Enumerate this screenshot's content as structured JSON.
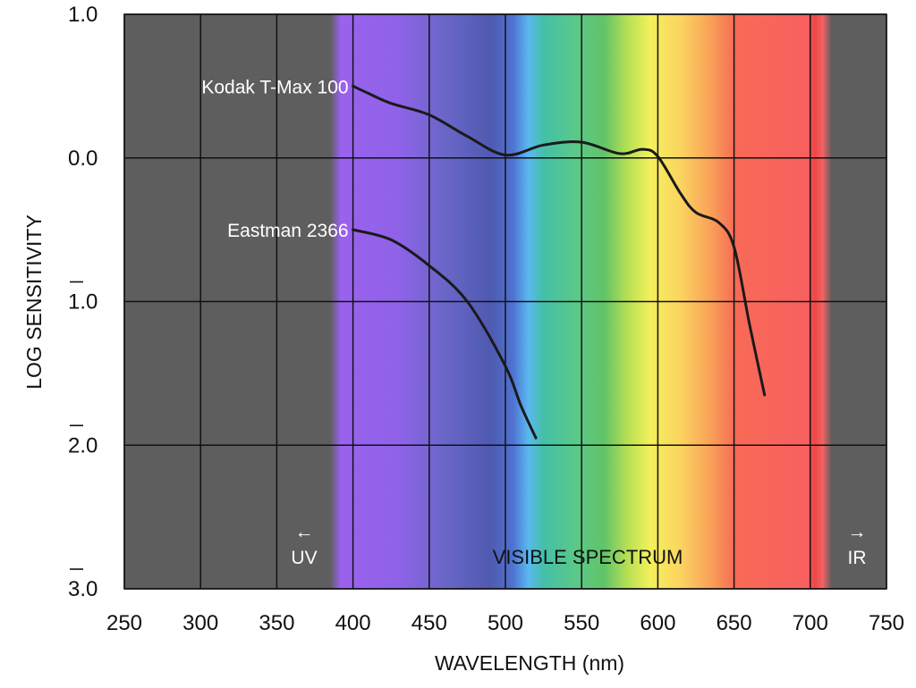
{
  "chart_data": {
    "type": "line",
    "xlabel": "WAVELENGTH (nm)",
    "ylabel": "LOG SENSITIVITY",
    "xlim": [
      250,
      750
    ],
    "ylim": [
      -3,
      1
    ],
    "x_ticks": [
      250,
      300,
      350,
      400,
      450,
      500,
      550,
      600,
      650,
      700,
      750
    ],
    "x_tick_labels": [
      "250",
      "300",
      "350",
      "400",
      "450",
      "500",
      "550",
      "600",
      "650",
      "700",
      "750"
    ],
    "y_ticks": [
      1,
      0,
      -1,
      -2,
      -3
    ],
    "y_tick_labels": [
      "1.0",
      "0.0",
      "1.0",
      "2.0",
      "3.0"
    ],
    "y_tick_bar_notation": [
      false,
      false,
      true,
      true,
      true
    ],
    "grid": true,
    "background_regions": [
      {
        "label": "UV",
        "arrow": "←",
        "x_range": [
          250,
          385
        ],
        "color": "#5e5e5e"
      },
      {
        "label": "VISIBLE SPECTRUM",
        "x_range": [
          385,
          712
        ]
      },
      {
        "label": "IR",
        "arrow": "→",
        "x_range": [
          712,
          750
        ],
        "color": "#5e5e5e"
      }
    ],
    "spectrum_stops": [
      {
        "x": 385,
        "color": "#5e5e5e"
      },
      {
        "x": 392,
        "color": "#9a62ee"
      },
      {
        "x": 430,
        "color": "#8f62e8"
      },
      {
        "x": 460,
        "color": "#6a66c8"
      },
      {
        "x": 490,
        "color": "#4f5ab0"
      },
      {
        "x": 505,
        "color": "#4f72d0"
      },
      {
        "x": 515,
        "color": "#5ab8f0"
      },
      {
        "x": 525,
        "color": "#44c0a8"
      },
      {
        "x": 545,
        "color": "#5ac88a"
      },
      {
        "x": 565,
        "color": "#62c468"
      },
      {
        "x": 580,
        "color": "#b6e054"
      },
      {
        "x": 595,
        "color": "#f4f05c"
      },
      {
        "x": 615,
        "color": "#fbd460"
      },
      {
        "x": 635,
        "color": "#f9a058"
      },
      {
        "x": 651,
        "color": "#f86a56"
      },
      {
        "x": 698,
        "color": "#f86060"
      },
      {
        "x": 703,
        "color": "#ee4646"
      },
      {
        "x": 708,
        "color": "#f46262"
      },
      {
        "x": 714,
        "color": "#5e5e5e"
      }
    ],
    "series": [
      {
        "name": "Kodak T-Max 100",
        "x": [
          400,
          410,
          425,
          450,
          475,
          500,
          525,
          550,
          575,
          590,
          600,
          615,
          625,
          640,
          650,
          660,
          670
        ],
        "y": [
          0.5,
          0.45,
          0.38,
          0.3,
          0.15,
          0.02,
          0.09,
          0.11,
          0.03,
          0.06,
          0.01,
          -0.25,
          -0.38,
          -0.45,
          -0.62,
          -1.15,
          -1.65
        ]
      },
      {
        "name": "Eastman 2366",
        "x": [
          400,
          425,
          450,
          475,
          500,
          510,
          520
        ],
        "y": [
          -0.5,
          -0.57,
          -0.75,
          -1.0,
          -1.45,
          -1.72,
          -1.95
        ]
      }
    ]
  }
}
